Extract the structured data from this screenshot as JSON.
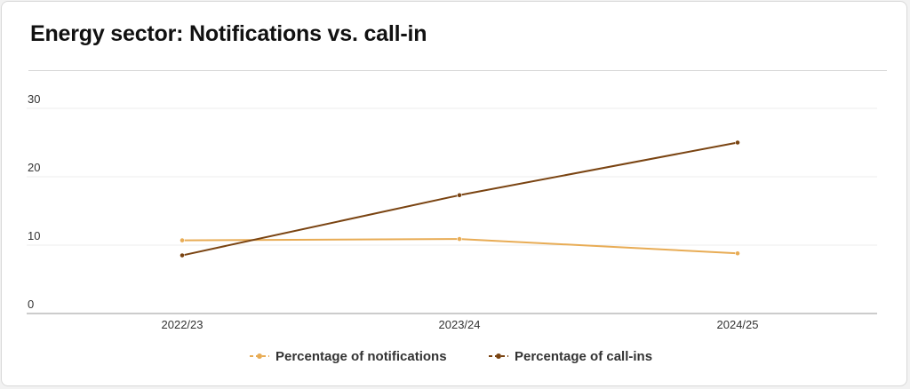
{
  "chart_data": {
    "type": "line",
    "title": "Energy sector: Notifications vs. call-in",
    "categories": [
      "2022/23",
      "2023/24",
      "2024/25"
    ],
    "y_ticks": [
      "0",
      "10",
      "20",
      "30"
    ],
    "ylim": [
      0,
      30
    ],
    "grid": true,
    "legend_position": "bottom-center",
    "series": [
      {
        "name": "Percentage of notifications",
        "color": "#e8ac55",
        "values": [
          10.7,
          10.9,
          8.8
        ]
      },
      {
        "name": "Percentage of call-ins",
        "color": "#7a4412",
        "values": [
          8.5,
          17.3,
          25.0
        ]
      }
    ]
  }
}
